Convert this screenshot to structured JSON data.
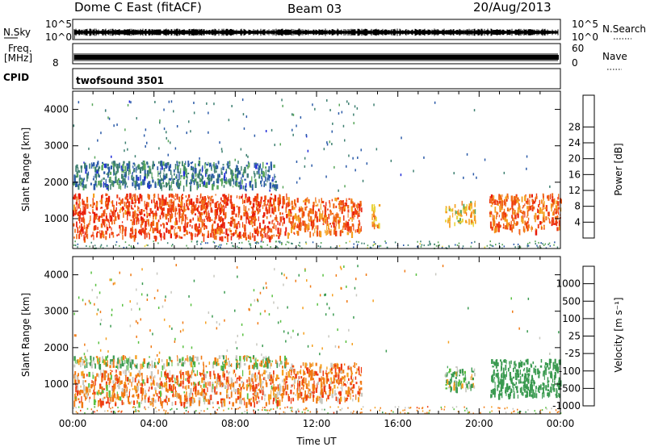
{
  "header": {
    "title": "Dome C East (fitACF)",
    "beam": "Beam 03",
    "date": "20/Aug/2013"
  },
  "status_rows": {
    "nsky_label": "N.Sky",
    "nsky_ticks": [
      "10^5",
      "10^0"
    ],
    "nsearch_label": "N.Search",
    "nsearch_ticks": [
      "10^5",
      "10^0"
    ],
    "freq_label": "Freq.",
    "freq_unit": "[MHz]",
    "freq_ticks": [
      "8"
    ],
    "nave_label": "Nave",
    "nave_ticks": [
      "60",
      "0"
    ],
    "cpid_label": "CPID",
    "cpid_value": "twofsound 3501"
  },
  "colors": {
    "power_scale": [
      "#1f2bd8",
      "#2a5aa8",
      "#3d7f70",
      "#58a65a",
      "#e8d23a",
      "#f5a020",
      "#f06a14",
      "#ee3a10",
      "#e81a0a"
    ],
    "velocity_scale": [
      "#e81a0a",
      "#ee3a10",
      "#f07a14",
      "#f5a020",
      "#c8c8c0",
      "#58c040",
      "#3a9a50",
      "#2a5aa8"
    ]
  },
  "chart_data": [
    {
      "type": "heatmap",
      "panel": "power",
      "ylabel": "Slant Range [km]",
      "xlabel": "Time UT",
      "x_ticks": [
        "00:00",
        "04:00",
        "08:00",
        "12:00",
        "16:00",
        "20:00",
        "00:00"
      ],
      "xlim_hours": [
        0,
        24
      ],
      "y_ticks": [
        1000,
        2000,
        3000,
        4000
      ],
      "ylim": [
        180,
        4500
      ],
      "colorbar": {
        "label": "Power [dB]",
        "ticks": [
          4,
          8,
          12,
          16,
          20,
          24,
          28
        ]
      },
      "echo_regions": [
        {
          "t0": 0.0,
          "t1": 10.5,
          "r0": 500,
          "r1": 1700,
          "mean_dB": 26
        },
        {
          "t0": 10.5,
          "t1": 14.2,
          "r0": 600,
          "r1": 1600,
          "mean_dB": 24
        },
        {
          "t0": 14.7,
          "t1": 15.1,
          "r0": 800,
          "r1": 1400,
          "mean_dB": 20
        },
        {
          "t0": 18.3,
          "t1": 19.8,
          "r0": 900,
          "r1": 1500,
          "mean_dB": 18
        },
        {
          "t0": 20.5,
          "t1": 24.0,
          "r0": 700,
          "r1": 1700,
          "mean_dB": 24
        },
        {
          "t0": 0.0,
          "t1": 10.0,
          "r0": 1900,
          "r1": 2600,
          "mean_dB": 8
        }
      ]
    },
    {
      "type": "heatmap",
      "panel": "velocity",
      "ylabel": "Slant Range [km]",
      "xlabel": "Time UT",
      "x_ticks": [
        "00:00",
        "04:00",
        "08:00",
        "12:00",
        "16:00",
        "20:00",
        "00:00"
      ],
      "xlim_hours": [
        0,
        24
      ],
      "y_ticks": [
        1000,
        2000,
        3000,
        4000
      ],
      "ylim": [
        180,
        4500
      ],
      "colorbar": {
        "label": "Velocity [m s⁻¹]",
        "ticks": [
          1000,
          500,
          100,
          25,
          -25,
          -100,
          -500,
          -1000
        ]
      },
      "echo_regions": [
        {
          "t0": 0.0,
          "t1": 10.5,
          "r0": 1500,
          "r1": 1800,
          "mean_velocity": 0
        },
        {
          "t0": 0.0,
          "t1": 10.5,
          "r0": 500,
          "r1": 1400,
          "mean_velocity": -150
        },
        {
          "t0": 10.5,
          "t1": 14.2,
          "r0": 600,
          "r1": 1600,
          "mean_velocity": -200
        },
        {
          "t0": 18.3,
          "t1": 19.8,
          "r0": 900,
          "r1": 1500,
          "mean_velocity": 100
        },
        {
          "t0": 20.5,
          "t1": 24.0,
          "r0": 700,
          "r1": 1700,
          "mean_velocity": 300
        }
      ]
    }
  ]
}
